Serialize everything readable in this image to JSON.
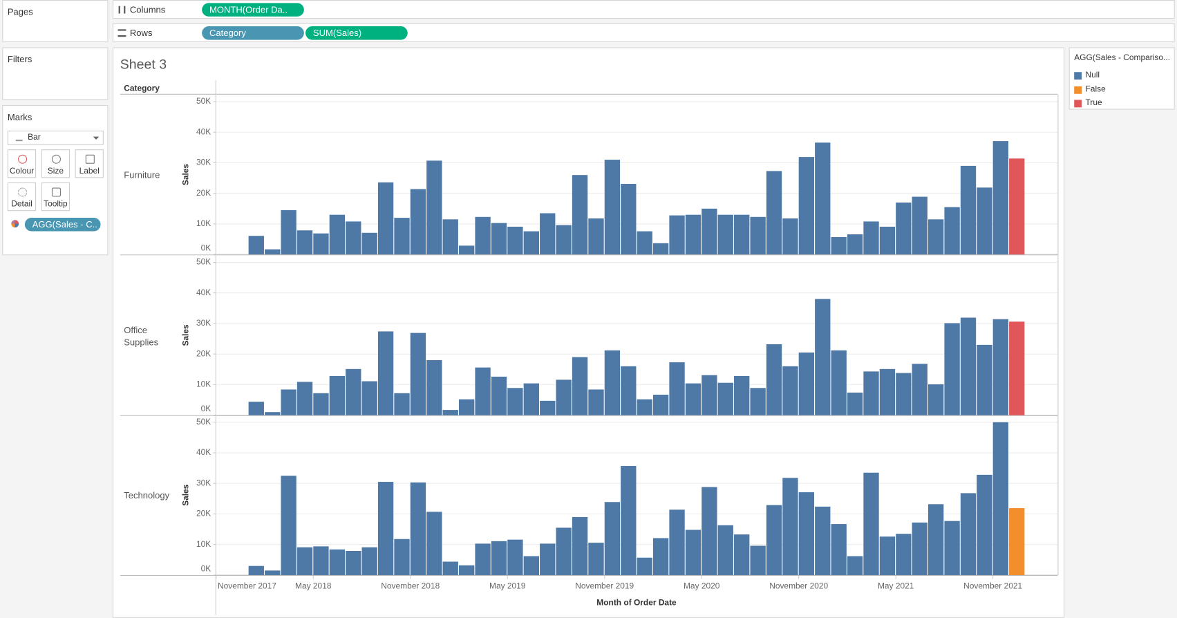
{
  "ui": {
    "pages": "Pages",
    "filters": "Filters",
    "marks": "Marks",
    "mark_type": "Bar",
    "mark_buttons": [
      "Colour",
      "Size",
      "Label",
      "Detail",
      "Tooltip"
    ],
    "marks_pill": "AGG(Sales - C..",
    "columns": {
      "label": "Columns",
      "pills": [
        "MONTH(Order Da.."
      ]
    },
    "rows": {
      "label": "Rows",
      "pills": [
        "Category",
        "SUM(Sales)"
      ]
    }
  },
  "chart_data": {
    "type": "bar",
    "title": "Sheet 3",
    "row_header": "Category",
    "ylabel": "Sales",
    "xlabel": "Month of Order Date",
    "x": [
      "2018-01",
      "2018-02",
      "2018-03",
      "2018-04",
      "2018-05",
      "2018-06",
      "2018-07",
      "2018-08",
      "2018-09",
      "2018-10",
      "2018-11",
      "2018-12",
      "2019-01",
      "2019-02",
      "2019-03",
      "2019-04",
      "2019-05",
      "2019-06",
      "2019-07",
      "2019-08",
      "2019-09",
      "2019-10",
      "2019-11",
      "2019-12",
      "2020-01",
      "2020-02",
      "2020-03",
      "2020-04",
      "2020-05",
      "2020-06",
      "2020-07",
      "2020-08",
      "2020-09",
      "2020-10",
      "2020-11",
      "2020-12",
      "2021-01",
      "2021-02",
      "2021-03",
      "2021-04",
      "2021-05",
      "2021-06",
      "2021-07",
      "2021-08",
      "2021-09",
      "2021-10",
      "2021-11",
      "2021-12"
    ],
    "xlim": [
      "2017-11",
      "2022-03"
    ],
    "xticks": [
      {
        "value": "2017-11",
        "label": "November 2017"
      },
      {
        "value": "2018-05",
        "label": "May 2018"
      },
      {
        "value": "2018-11",
        "label": "November 2018"
      },
      {
        "value": "2019-05",
        "label": "May 2019"
      },
      {
        "value": "2019-11",
        "label": "November 2019"
      },
      {
        "value": "2020-05",
        "label": "May 2020"
      },
      {
        "value": "2020-11",
        "label": "November 2020"
      },
      {
        "value": "2021-05",
        "label": "May 2021"
      },
      {
        "value": "2021-11",
        "label": "November 2021"
      }
    ],
    "ylim": [
      0,
      52300
    ],
    "yticks": [
      {
        "value": 0,
        "label": "0K"
      },
      {
        "value": 10000,
        "label": "10K"
      },
      {
        "value": 20000,
        "label": "20K"
      },
      {
        "value": 30000,
        "label": "30K"
      },
      {
        "value": 40000,
        "label": "40K"
      },
      {
        "value": 50000,
        "label": "50K"
      }
    ],
    "grid": true,
    "legend": {
      "title": "AGG(Sales - Compariso...",
      "position": "right",
      "items": [
        {
          "name": "Null",
          "color": "#4e79a7"
        },
        {
          "name": "False",
          "color": "#f28e2b"
        },
        {
          "name": "True",
          "color": "#e15759"
        }
      ]
    },
    "series": [
      {
        "name": "Furniture",
        "values": [
          6100,
          1700,
          14500,
          7900,
          6900,
          13000,
          10800,
          7100,
          23600,
          12000,
          21400,
          30700,
          11500,
          2900,
          12300,
          10300,
          9100,
          7600,
          13500,
          9600,
          26000,
          11800,
          31000,
          23100,
          7600,
          3700,
          12800,
          13000,
          15000,
          13000,
          13000,
          12300,
          27300,
          11800,
          31900,
          36600,
          5700,
          6600,
          10800,
          9100,
          17000,
          18900,
          11500,
          15500,
          29000,
          21900,
          37100,
          31400
        ],
        "status": [
          "Null",
          "Null",
          "Null",
          "Null",
          "Null",
          "Null",
          "Null",
          "Null",
          "Null",
          "Null",
          "Null",
          "Null",
          "Null",
          "Null",
          "Null",
          "Null",
          "Null",
          "Null",
          "Null",
          "Null",
          "Null",
          "Null",
          "Null",
          "Null",
          "Null",
          "Null",
          "Null",
          "Null",
          "Null",
          "Null",
          "Null",
          "Null",
          "Null",
          "Null",
          "Null",
          "Null",
          "Null",
          "Null",
          "Null",
          "Null",
          "Null",
          "Null",
          "Null",
          "Null",
          "Null",
          "Null",
          "Null",
          "True"
        ]
      },
      {
        "name": "Office Supplies",
        "values": [
          4400,
          1000,
          8400,
          10900,
          7200,
          12800,
          15100,
          11100,
          27400,
          7200,
          26900,
          18000,
          1700,
          5200,
          15600,
          12600,
          8900,
          10400,
          4700,
          11600,
          19000,
          8400,
          21200,
          16000,
          5200,
          6700,
          17300,
          10400,
          13100,
          10600,
          12800,
          8900,
          23200,
          16000,
          20500,
          38000,
          21200,
          7400,
          14300,
          15100,
          13800,
          16800,
          10100,
          30100,
          31900,
          23000,
          31400,
          30600
        ],
        "status": [
          "Null",
          "Null",
          "Null",
          "Null",
          "Null",
          "Null",
          "Null",
          "Null",
          "Null",
          "Null",
          "Null",
          "Null",
          "Null",
          "Null",
          "Null",
          "Null",
          "Null",
          "Null",
          "Null",
          "Null",
          "Null",
          "Null",
          "Null",
          "Null",
          "Null",
          "Null",
          "Null",
          "Null",
          "Null",
          "Null",
          "Null",
          "Null",
          "Null",
          "Null",
          "Null",
          "Null",
          "Null",
          "Null",
          "Null",
          "Null",
          "Null",
          "Null",
          "Null",
          "Null",
          "Null",
          "Null",
          "Null",
          "True"
        ]
      },
      {
        "name": "Technology",
        "values": [
          3000,
          1500,
          32500,
          9100,
          9400,
          8400,
          7900,
          9100,
          30500,
          11800,
          30300,
          20700,
          4400,
          3200,
          10300,
          11100,
          11600,
          6200,
          10300,
          15500,
          19000,
          10600,
          23900,
          35700,
          5700,
          12100,
          21400,
          14800,
          28800,
          16300,
          13300,
          9600,
          22900,
          31800,
          27100,
          22400,
          16700,
          6200,
          33500,
          12600,
          13500,
          17200,
          23200,
          17700,
          26800,
          32800,
          50000,
          21900
        ],
        "status": [
          "Null",
          "Null",
          "Null",
          "Null",
          "Null",
          "Null",
          "Null",
          "Null",
          "Null",
          "Null",
          "Null",
          "Null",
          "Null",
          "Null",
          "Null",
          "Null",
          "Null",
          "Null",
          "Null",
          "Null",
          "Null",
          "Null",
          "Null",
          "Null",
          "Null",
          "Null",
          "Null",
          "Null",
          "Null",
          "Null",
          "Null",
          "Null",
          "Null",
          "Null",
          "Null",
          "Null",
          "Null",
          "Null",
          "Null",
          "Null",
          "Null",
          "Null",
          "Null",
          "Null",
          "Null",
          "Null",
          "Null",
          "False"
        ]
      }
    ]
  }
}
